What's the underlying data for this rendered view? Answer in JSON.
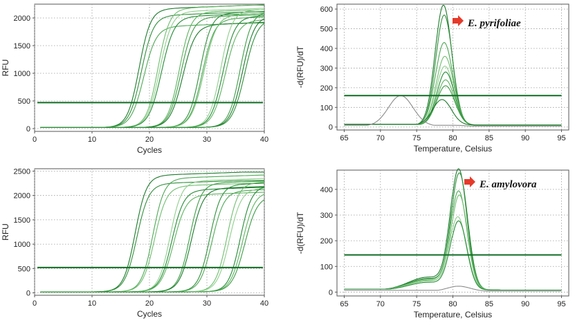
{
  "chart_data": [
    {
      "id": "amp-top",
      "type": "line",
      "xlabel": "Cycles",
      "ylabel": "RFU",
      "xlim": [
        0,
        40
      ],
      "ylim": [
        -50,
        2250
      ],
      "xticks": [
        0,
        10,
        20,
        30,
        40
      ],
      "yticks": [
        0,
        500,
        1000,
        1500,
        2000
      ],
      "grid": true,
      "threshold": 470,
      "curve_model": "sigmoid",
      "curves": [
        {
          "mid": 18.2,
          "plateau": 2170,
          "slope": 1.0
        },
        {
          "mid": 18.6,
          "plateau": 2050,
          "slope": 1.05
        },
        {
          "mid": 19.0,
          "plateau": 1850,
          "slope": 1.1
        },
        {
          "mid": 21.5,
          "plateau": 2180,
          "slope": 1.0
        },
        {
          "mid": 21.8,
          "plateau": 2120,
          "slope": 1.05
        },
        {
          "mid": 22.1,
          "plateau": 2030,
          "slope": 1.1
        },
        {
          "mid": 25.2,
          "plateau": 2110,
          "slope": 1.0
        },
        {
          "mid": 25.5,
          "plateau": 2020,
          "slope": 1.05
        },
        {
          "mid": 25.8,
          "plateau": 1880,
          "slope": 1.1
        },
        {
          "mid": 28.8,
          "plateau": 2090,
          "slope": 1.0
        },
        {
          "mid": 29.2,
          "plateau": 1990,
          "slope": 1.05
        },
        {
          "mid": 29.5,
          "plateau": 2060,
          "slope": 1.1
        },
        {
          "mid": 32.4,
          "plateau": 2140,
          "slope": 1.0
        },
        {
          "mid": 32.8,
          "plateau": 2030,
          "slope": 1.05
        },
        {
          "mid": 33.2,
          "plateau": 1960,
          "slope": 1.1
        },
        {
          "mid": 35.8,
          "plateau": 2120,
          "slope": 1.0
        },
        {
          "mid": 36.2,
          "plateau": 2040,
          "slope": 1.05
        },
        {
          "mid": 36.6,
          "plateau": 1990,
          "slope": 1.1
        }
      ]
    },
    {
      "id": "melt-top",
      "type": "line",
      "xlabel": "Temperature, Celsius",
      "ylabel": "-d(RFU)/dT",
      "xlim": [
        64,
        96
      ],
      "ylim": [
        -15,
        625
      ],
      "xticks": [
        65,
        70,
        75,
        80,
        85,
        90,
        95
      ],
      "yticks": [
        0,
        100,
        200,
        300,
        400,
        500,
        600
      ],
      "grid": true,
      "threshold": 160,
      "annotation": "E. pyrifoliae",
      "curve_model": "gaussian",
      "curves": [
        {
          "center": 78.7,
          "peak": 610,
          "width": 1.15,
          "base": 10
        },
        {
          "center": 78.8,
          "peak": 560,
          "width": 1.15,
          "base": 10
        },
        {
          "center": 78.8,
          "peak": 420,
          "width": 1.2,
          "base": 10
        },
        {
          "center": 78.9,
          "peak": 350,
          "width": 1.2,
          "base": 10
        },
        {
          "center": 78.9,
          "peak": 300,
          "width": 1.2,
          "base": 10
        },
        {
          "center": 79.0,
          "peak": 270,
          "width": 1.2,
          "base": 10
        },
        {
          "center": 79.0,
          "peak": 230,
          "width": 1.2,
          "base": 10
        },
        {
          "center": 79.0,
          "peak": 200,
          "width": 1.25,
          "base": 10
        },
        {
          "center": 78.5,
          "peak": 130,
          "width": 1.3,
          "base": 10
        },
        {
          "center": 72.8,
          "peak": 155,
          "width": 1.7,
          "base": 5,
          "gray": true
        }
      ]
    },
    {
      "id": "amp-bottom",
      "type": "line",
      "xlabel": "Cycles",
      "ylabel": "RFU",
      "xlim": [
        0,
        40
      ],
      "ylim": [
        -50,
        2550
      ],
      "xticks": [
        0,
        10,
        20,
        30,
        40
      ],
      "yticks": [
        0,
        500,
        1000,
        1500,
        2000,
        2500
      ],
      "grid": true,
      "threshold": 520,
      "curve_model": "sigmoid",
      "curves": [
        {
          "mid": 17.5,
          "plateau": 2420,
          "slope": 1.0
        },
        {
          "mid": 17.8,
          "plateau": 2250,
          "slope": 1.05
        },
        {
          "mid": 20.6,
          "plateau": 2360,
          "slope": 1.0
        },
        {
          "mid": 20.9,
          "plateau": 2200,
          "slope": 1.05
        },
        {
          "mid": 23.6,
          "plateau": 2300,
          "slope": 1.0
        },
        {
          "mid": 23.9,
          "plateau": 2120,
          "slope": 1.05
        },
        {
          "mid": 24.2,
          "plateau": 2020,
          "slope": 1.1
        },
        {
          "mid": 27.0,
          "plateau": 2260,
          "slope": 1.0
        },
        {
          "mid": 27.3,
          "plateau": 2150,
          "slope": 1.05
        },
        {
          "mid": 30.5,
          "plateau": 2230,
          "slope": 1.0
        },
        {
          "mid": 30.9,
          "plateau": 2100,
          "slope": 1.05
        },
        {
          "mid": 33.5,
          "plateau": 2270,
          "slope": 1.0
        },
        {
          "mid": 33.9,
          "plateau": 2150,
          "slope": 1.05
        },
        {
          "mid": 35.8,
          "plateau": 2200,
          "slope": 1.0
        },
        {
          "mid": 36.2,
          "plateau": 2080,
          "slope": 1.05
        },
        {
          "mid": 36.6,
          "plateau": 2000,
          "slope": 1.1
        }
      ]
    },
    {
      "id": "melt-bottom",
      "type": "line",
      "xlabel": "Temperature, Celsius",
      "ylabel": "-d(RFU)/dT",
      "xlim": [
        64,
        96
      ],
      "ylim": [
        -15,
        475
      ],
      "xticks": [
        65,
        70,
        75,
        80,
        85,
        90,
        95
      ],
      "yticks": [
        0,
        100,
        200,
        300,
        400
      ],
      "grid": true,
      "threshold": 145,
      "annotation": "E. amylovora",
      "curve_model": "gaussian+shoulder",
      "curves": [
        {
          "center": 80.8,
          "peak": 465,
          "width": 1.15,
          "base": 8,
          "shoulder": 50
        },
        {
          "center": 80.9,
          "peak": 450,
          "width": 1.15,
          "base": 8,
          "shoulder": 45
        },
        {
          "center": 80.8,
          "peak": 380,
          "width": 1.15,
          "base": 8,
          "shoulder": 42
        },
        {
          "center": 80.9,
          "peak": 365,
          "width": 1.15,
          "base": 8,
          "shoulder": 38
        },
        {
          "center": 80.7,
          "peak": 280,
          "width": 1.15,
          "base": 8,
          "shoulder": 35
        },
        {
          "center": 80.8,
          "peak": 265,
          "width": 1.15,
          "base": 8,
          "shoulder": 30
        },
        {
          "center": 80.8,
          "peak": 20,
          "width": 1.6,
          "base": 3,
          "shoulder": 0,
          "gray": true
        }
      ]
    }
  ]
}
